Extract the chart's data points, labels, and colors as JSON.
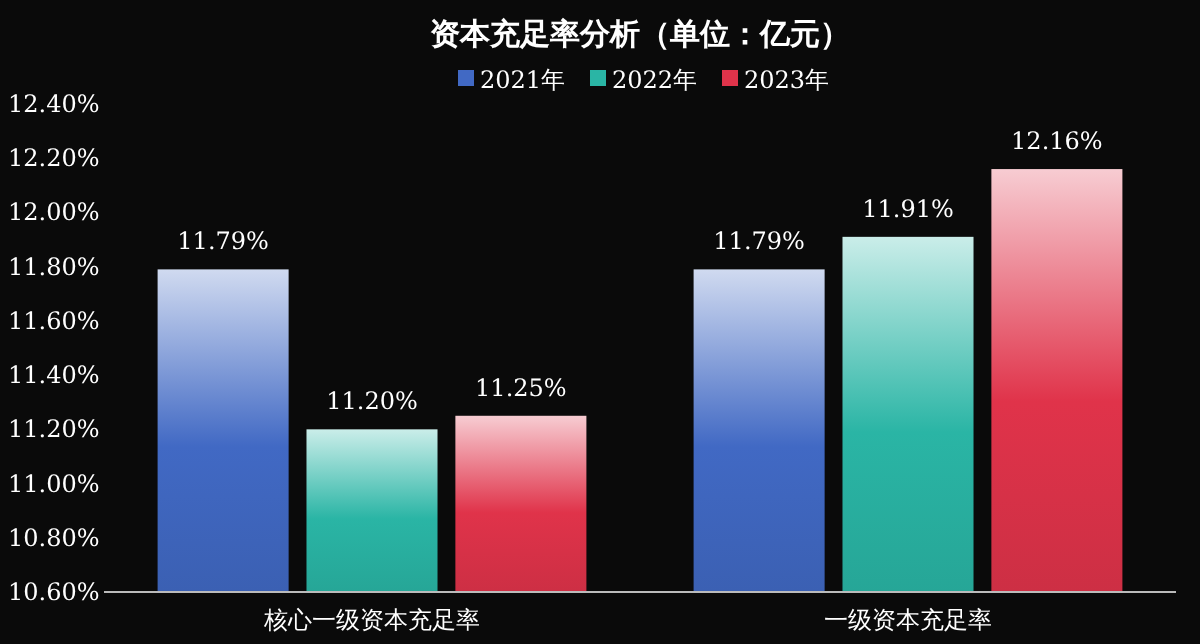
{
  "chart_data": {
    "type": "bar",
    "title": "资本充足率分析（单位：亿元）",
    "categories": [
      "核心一级资本充足率",
      "一级资本充足率"
    ],
    "series": [
      {
        "name": "2021年",
        "color": "#4169c4",
        "values": [
          11.79,
          11.79
        ],
        "value_labels": [
          "11.79%",
          "11.79%"
        ]
      },
      {
        "name": "2022年",
        "color": "#2ab5a5",
        "values": [
          11.2,
          11.91
        ],
        "value_labels": [
          "11.20%",
          "11.91%"
        ]
      },
      {
        "name": "2023年",
        "color": "#e0334a",
        "values": [
          11.25,
          12.16
        ],
        "value_labels": [
          "11.25%",
          "12.16%"
        ]
      }
    ],
    "ylim": [
      10.6,
      12.4
    ],
    "yticks": [
      {
        "value": 10.6,
        "label": "10.60%"
      },
      {
        "value": 10.8,
        "label": "10.80%"
      },
      {
        "value": 11.0,
        "label": "11.00%"
      },
      {
        "value": 11.2,
        "label": "11.20%"
      },
      {
        "value": 11.4,
        "label": "11.40%"
      },
      {
        "value": 11.6,
        "label": "11.60%"
      },
      {
        "value": 11.8,
        "label": "11.80%"
      },
      {
        "value": 12.0,
        "label": "12.00%"
      },
      {
        "value": 12.2,
        "label": "12.20%"
      },
      {
        "value": 12.4,
        "label": "12.40%"
      }
    ],
    "grid": false,
    "legend": "top"
  }
}
